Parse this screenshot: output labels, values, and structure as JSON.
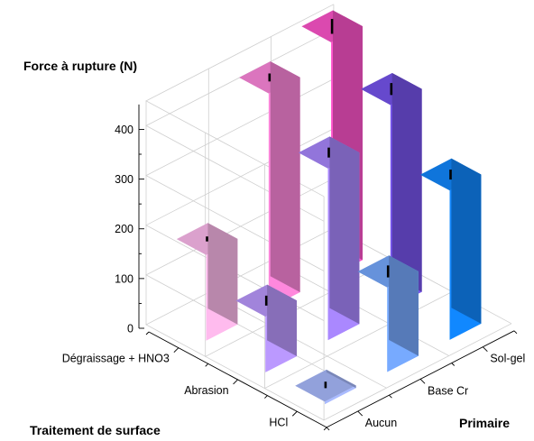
{
  "chart_data": {
    "type": "bar",
    "ylabel": "Force à rupture (N)",
    "xlabel": "Traitement de surface",
    "zlabel": "Primaire",
    "categories_x": [
      "Dégraissage + HNO3",
      "Abrasion",
      "HCl"
    ],
    "categories_z": [
      "Aucun",
      "Base Cr",
      "Sol-gel"
    ],
    "yticks": [
      0,
      100,
      200,
      300,
      400
    ],
    "ylim": [
      0,
      450
    ],
    "grid": true,
    "bars": [
      {
        "traitement": "Dégraissage + HNO3",
        "primaire": "Aucun",
        "value": 172,
        "error": 5,
        "color": "#ffbbee"
      },
      {
        "traitement": "Dégraissage + HNO3",
        "primaire": "Base Cr",
        "value": 432,
        "error": 8,
        "color": "#ff88dd"
      },
      {
        "traitement": "Dégraissage + HNO3",
        "primaire": "Sol-gel",
        "value": 470,
        "error": 15,
        "color": "#ff55cc"
      },
      {
        "traitement": "Abrasion",
        "primaire": "Aucun",
        "value": 112,
        "error": 10,
        "color": "#bb99ff"
      },
      {
        "traitement": "Abrasion",
        "primaire": "Base Cr",
        "value": 345,
        "error": 10,
        "color": "#aa88ff"
      },
      {
        "traitement": "Abrasion",
        "primaire": "Sol-gel",
        "value": 408,
        "error": 12,
        "color": "#7755ee"
      },
      {
        "traitement": "HCl",
        "primaire": "Aucun",
        "value": 5,
        "error": 8,
        "color": "#aabbff"
      },
      {
        "traitement": "HCl",
        "primaire": "Base Cr",
        "value": 170,
        "error": 12,
        "color": "#77aaff"
      },
      {
        "traitement": "HCl",
        "primaire": "Sol-gel",
        "value": 300,
        "error": 10,
        "color": "#1188ff"
      }
    ]
  }
}
